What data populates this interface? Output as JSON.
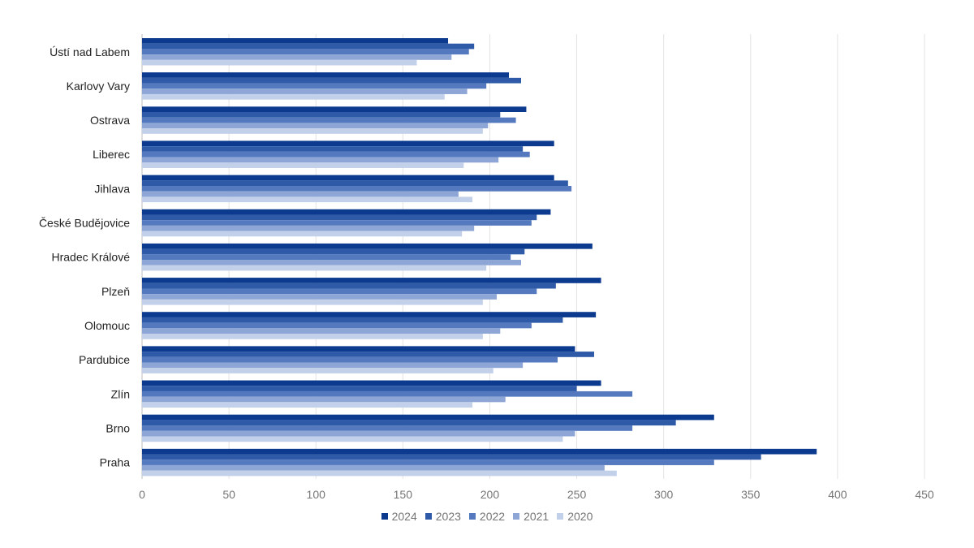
{
  "chart_data": {
    "type": "bar",
    "orientation": "horizontal",
    "categories": [
      "Ústí nad Labem",
      "Karlovy Vary",
      "Ostrava",
      "Liberec",
      "Jihlava",
      "České Budějovice",
      "Hradec Králové",
      "Plzeň",
      "Olomouc",
      "Pardubice",
      "Zlín",
      "Brno",
      "Praha"
    ],
    "series": [
      {
        "name": "2024",
        "color": "#0b3a8f",
        "values": [
          176,
          211,
          221,
          237,
          237,
          235,
          259,
          264,
          261,
          249,
          264,
          329,
          388
        ]
      },
      {
        "name": "2023",
        "color": "#2e5aa8",
        "values": [
          191,
          218,
          206,
          219,
          245,
          227,
          220,
          238,
          242,
          260,
          250,
          307,
          356
        ]
      },
      {
        "name": "2022",
        "color": "#5579be",
        "values": [
          188,
          198,
          215,
          223,
          247,
          224,
          212,
          227,
          224,
          239,
          282,
          282,
          329
        ]
      },
      {
        "name": "2021",
        "color": "#8ea6d6",
        "values": [
          178,
          187,
          199,
          205,
          182,
          191,
          218,
          204,
          206,
          219,
          209,
          249,
          266
        ]
      },
      {
        "name": "2020",
        "color": "#c3d0ea",
        "values": [
          158,
          174,
          196,
          185,
          190,
          184,
          198,
          196,
          196,
          202,
          190,
          242,
          273
        ]
      }
    ],
    "xlim": [
      0,
      450
    ],
    "xticks": [
      "0",
      "50",
      "100",
      "150",
      "200",
      "250",
      "300",
      "350",
      "400",
      "450"
    ],
    "grid": "vertical",
    "legend_position": "bottom"
  }
}
